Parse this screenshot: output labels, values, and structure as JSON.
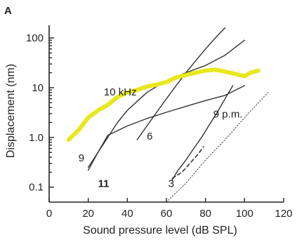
{
  "chart_data": {
    "type": "line",
    "panel_label": "A",
    "xlabel": "Sound pressure level (dB SPL)",
    "ylabel": "Displacement (nm)",
    "xlim": [
      0,
      120
    ],
    "ylim": [
      0.05,
      180
    ],
    "y_scale": "log",
    "x_ticks": [
      0,
      20,
      40,
      60,
      80,
      100,
      120
    ],
    "x_tick_labels": [
      "0",
      "20",
      "40",
      "60",
      "80",
      "100",
      "120"
    ],
    "y_ticks": [
      0.1,
      1,
      10,
      100
    ],
    "y_tick_labels": [
      "0.1",
      "1.0",
      "10",
      "100"
    ],
    "grid": false,
    "series": [
      {
        "name": "10 kHz",
        "color": "#e8e81c",
        "width": 6,
        "dash": "",
        "points": [
          [
            10,
            0.9
          ],
          [
            15,
            1.4
          ],
          [
            20,
            2.5
          ],
          [
            25,
            3.5
          ],
          [
            30,
            4.5
          ],
          [
            35,
            6.5
          ],
          [
            40,
            8
          ],
          [
            45,
            9
          ],
          [
            50,
            10.5
          ],
          [
            55,
            11.5
          ],
          [
            60,
            13
          ],
          [
            65,
            16
          ],
          [
            70,
            18
          ],
          [
            75,
            20
          ],
          [
            80,
            22
          ],
          [
            85,
            23
          ],
          [
            90,
            21
          ],
          [
            95,
            19
          ],
          [
            100,
            17
          ],
          [
            103,
            20
          ],
          [
            107,
            22
          ]
        ]
      },
      {
        "name": "9",
        "color": "#333333",
        "width": 1.4,
        "dash": "",
        "points": [
          [
            20,
            0.25
          ],
          [
            25,
            0.5
          ],
          [
            30,
            1.0
          ],
          [
            35,
            2.0
          ],
          [
            40,
            3.5
          ],
          [
            50,
            8
          ],
          [
            60,
            14
          ],
          [
            70,
            20
          ],
          [
            80,
            28
          ],
          [
            90,
            45
          ],
          [
            100,
            90
          ]
        ]
      },
      {
        "name": "11",
        "color": "#333333",
        "width": 1.4,
        "dash": "",
        "points": [
          [
            20,
            0.22
          ],
          [
            25,
            0.5
          ],
          [
            30,
            1.1
          ],
          [
            40,
            1.7
          ],
          [
            50,
            2.4
          ],
          [
            60,
            3.2
          ],
          [
            70,
            4.2
          ],
          [
            80,
            5.5
          ],
          [
            90,
            7
          ],
          [
            100,
            11
          ]
        ]
      },
      {
        "name": "6",
        "color": "#333333",
        "width": 1.4,
        "dash": "",
        "points": [
          [
            45,
            0.9
          ],
          [
            50,
            1.7
          ],
          [
            55,
            3.2
          ],
          [
            60,
            6
          ],
          [
            65,
            11
          ],
          [
            70,
            20
          ],
          [
            75,
            35
          ],
          [
            80,
            60
          ],
          [
            85,
            100
          ],
          [
            90,
            160
          ]
        ]
      },
      {
        "name": "3",
        "color": "#333333",
        "width": 1.4,
        "dash": "",
        "points": [
          [
            63,
            0.14
          ],
          [
            66,
            0.22
          ],
          [
            70,
            0.35
          ],
          [
            74,
            0.6
          ],
          [
            78,
            1.0
          ],
          [
            82,
            1.8
          ],
          [
            86,
            3.2
          ],
          [
            90,
            6
          ],
          [
            94,
            11
          ]
        ]
      },
      {
        "name": "9 p.m.",
        "color": "#333333",
        "width": 1.6,
        "dash": "5 4",
        "points": [
          [
            63,
            0.15
          ],
          [
            68,
            0.2
          ],
          [
            72,
            0.3
          ],
          [
            76,
            0.45
          ],
          [
            79,
            0.65
          ]
        ]
      },
      {
        "name": "",
        "color": "#555555",
        "width": 1.1,
        "dash": "1.5 2.5",
        "points": [
          [
            60,
            0.05
          ],
          [
            70,
            0.12
          ],
          [
            80,
            0.35
          ],
          [
            90,
            0.9
          ],
          [
            100,
            2.5
          ],
          [
            112,
            8
          ]
        ]
      }
    ],
    "labels": [
      {
        "text": "10 kHz",
        "x": 28,
        "y": 7,
        "bold": false
      },
      {
        "text": "9",
        "x": 15,
        "y": 0.33,
        "bold": false
      },
      {
        "text": "11",
        "x": 25,
        "y": 0.1,
        "bold": true
      },
      {
        "text": "6",
        "x": 50,
        "y": 0.9,
        "bold": false
      },
      {
        "text": "3",
        "x": 61,
        "y": 0.1,
        "bold": false
      },
      {
        "text": "9 p.m.",
        "x": 84,
        "y": 2.5,
        "bold": false
      }
    ]
  }
}
